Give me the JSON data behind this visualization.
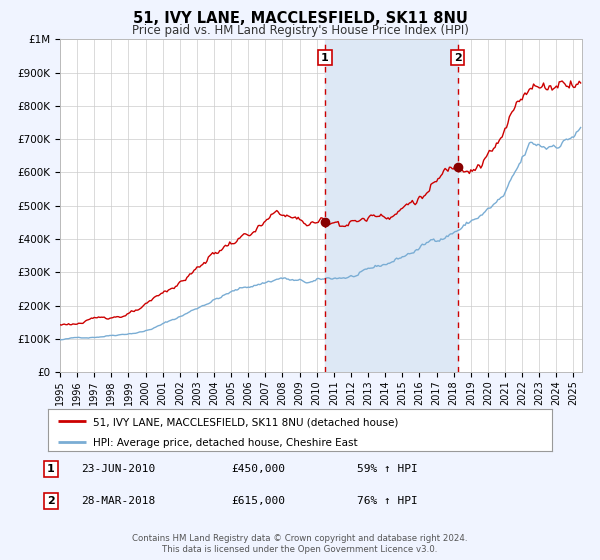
{
  "title": "51, IVY LANE, MACCLESFIELD, SK11 8NU",
  "subtitle": "Price paid vs. HM Land Registry's House Price Index (HPI)",
  "bg_color": "#f0f4ff",
  "plot_bg_color": "#ffffff",
  "grid_color": "#cccccc",
  "x_start": 1995.0,
  "x_end": 2025.5,
  "y_min": 0,
  "y_max": 1000000,
  "y_ticks": [
    0,
    100000,
    200000,
    300000,
    400000,
    500000,
    600000,
    700000,
    800000,
    900000,
    1000000
  ],
  "y_tick_labels": [
    "£0",
    "£100K",
    "£200K",
    "£300K",
    "£400K",
    "£500K",
    "£600K",
    "£700K",
    "£800K",
    "£900K",
    "£1M"
  ],
  "sale1_x": 2010.479,
  "sale1_y": 450000,
  "sale1_label": "1",
  "sale1_date": "23-JUN-2010",
  "sale1_price": "£450,000",
  "sale1_hpi": "59% ↑ HPI",
  "sale2_x": 2018.24,
  "sale2_y": 615000,
  "sale2_label": "2",
  "sale2_date": "28-MAR-2018",
  "sale2_price": "£615,000",
  "sale2_hpi": "76% ↑ HPI",
  "red_line_color": "#cc0000",
  "blue_line_color": "#7aadd4",
  "shade_color": "#dde8f5",
  "dot_color": "#880000",
  "legend1": "51, IVY LANE, MACCLESFIELD, SK11 8NU (detached house)",
  "legend2": "HPI: Average price, detached house, Cheshire East",
  "footer1": "Contains HM Land Registry data © Crown copyright and database right 2024.",
  "footer2": "This data is licensed under the Open Government Licence v3.0.",
  "x_ticks": [
    1995,
    1996,
    1997,
    1998,
    1999,
    2000,
    2001,
    2002,
    2003,
    2004,
    2005,
    2006,
    2007,
    2008,
    2009,
    2010,
    2011,
    2012,
    2013,
    2014,
    2015,
    2016,
    2017,
    2018,
    2019,
    2020,
    2021,
    2022,
    2023,
    2024,
    2025
  ]
}
